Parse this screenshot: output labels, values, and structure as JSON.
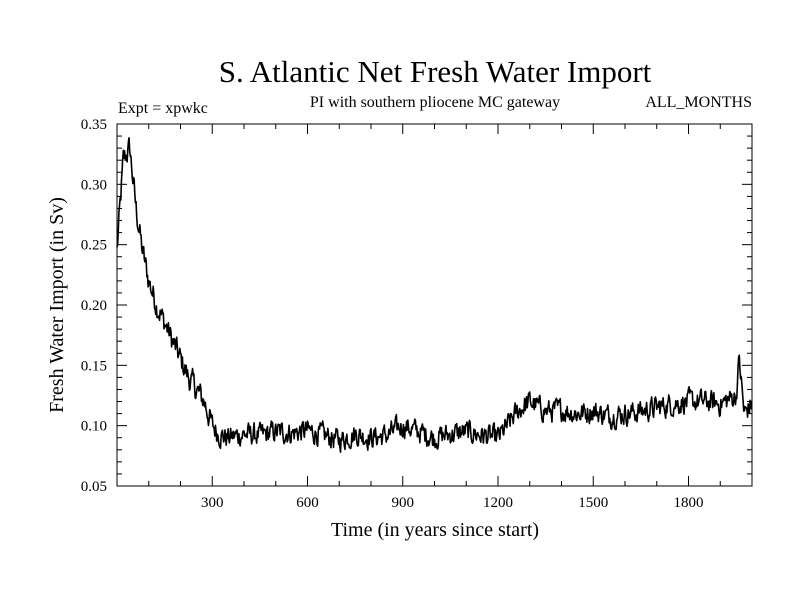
{
  "chart_data": {
    "type": "line",
    "title": "S. Atlantic Net Fresh Water Import",
    "subtitle": "PI with southern pliocene MC gateway",
    "expt_label": "Expt = xpwkc",
    "months_label": "ALL_MONTHS",
    "xlabel": "Time (in years since start)",
    "ylabel": "Fresh Water Import (in Sv)",
    "xlim": [
      0,
      2000
    ],
    "ylim": [
      0.05,
      0.35
    ],
    "xticks": [
      300,
      600,
      900,
      1200,
      1500,
      1800
    ],
    "xtick_labels": [
      "300",
      "600",
      "900",
      "1200",
      "1500",
      "1800"
    ],
    "yticks": [
      0.05,
      0.1,
      0.15,
      0.2,
      0.25,
      0.3,
      0.35
    ],
    "ytick_labels": [
      "0.05",
      "0.10",
      "0.15",
      "0.20",
      "0.25",
      "0.30",
      "0.35"
    ],
    "grid": false,
    "series": [
      {
        "name": "net fresh water import",
        "color": "#000000",
        "x": [
          0,
          20,
          40,
          60,
          80,
          100,
          125,
          150,
          175,
          200,
          225,
          250,
          275,
          300,
          325,
          350,
          400,
          450,
          500,
          550,
          600,
          650,
          700,
          750,
          800,
          850,
          900,
          950,
          1000,
          1050,
          1100,
          1150,
          1200,
          1225,
          1250,
          1275,
          1300,
          1350,
          1400,
          1450,
          1500,
          1550,
          1600,
          1650,
          1700,
          1750,
          1800,
          1850,
          1900,
          1950,
          1960,
          1975,
          2000
        ],
        "y": [
          0.245,
          0.32,
          0.33,
          0.28,
          0.245,
          0.22,
          0.2,
          0.185,
          0.17,
          0.155,
          0.14,
          0.13,
          0.12,
          0.1,
          0.092,
          0.09,
          0.093,
          0.092,
          0.095,
          0.094,
          0.096,
          0.092,
          0.088,
          0.093,
          0.09,
          0.092,
          0.1,
          0.095,
          0.09,
          0.093,
          0.095,
          0.092,
          0.09,
          0.098,
          0.108,
          0.115,
          0.12,
          0.112,
          0.113,
          0.11,
          0.112,
          0.108,
          0.11,
          0.112,
          0.115,
          0.118,
          0.12,
          0.12,
          0.118,
          0.125,
          0.155,
          0.11,
          0.118
        ]
      }
    ]
  }
}
